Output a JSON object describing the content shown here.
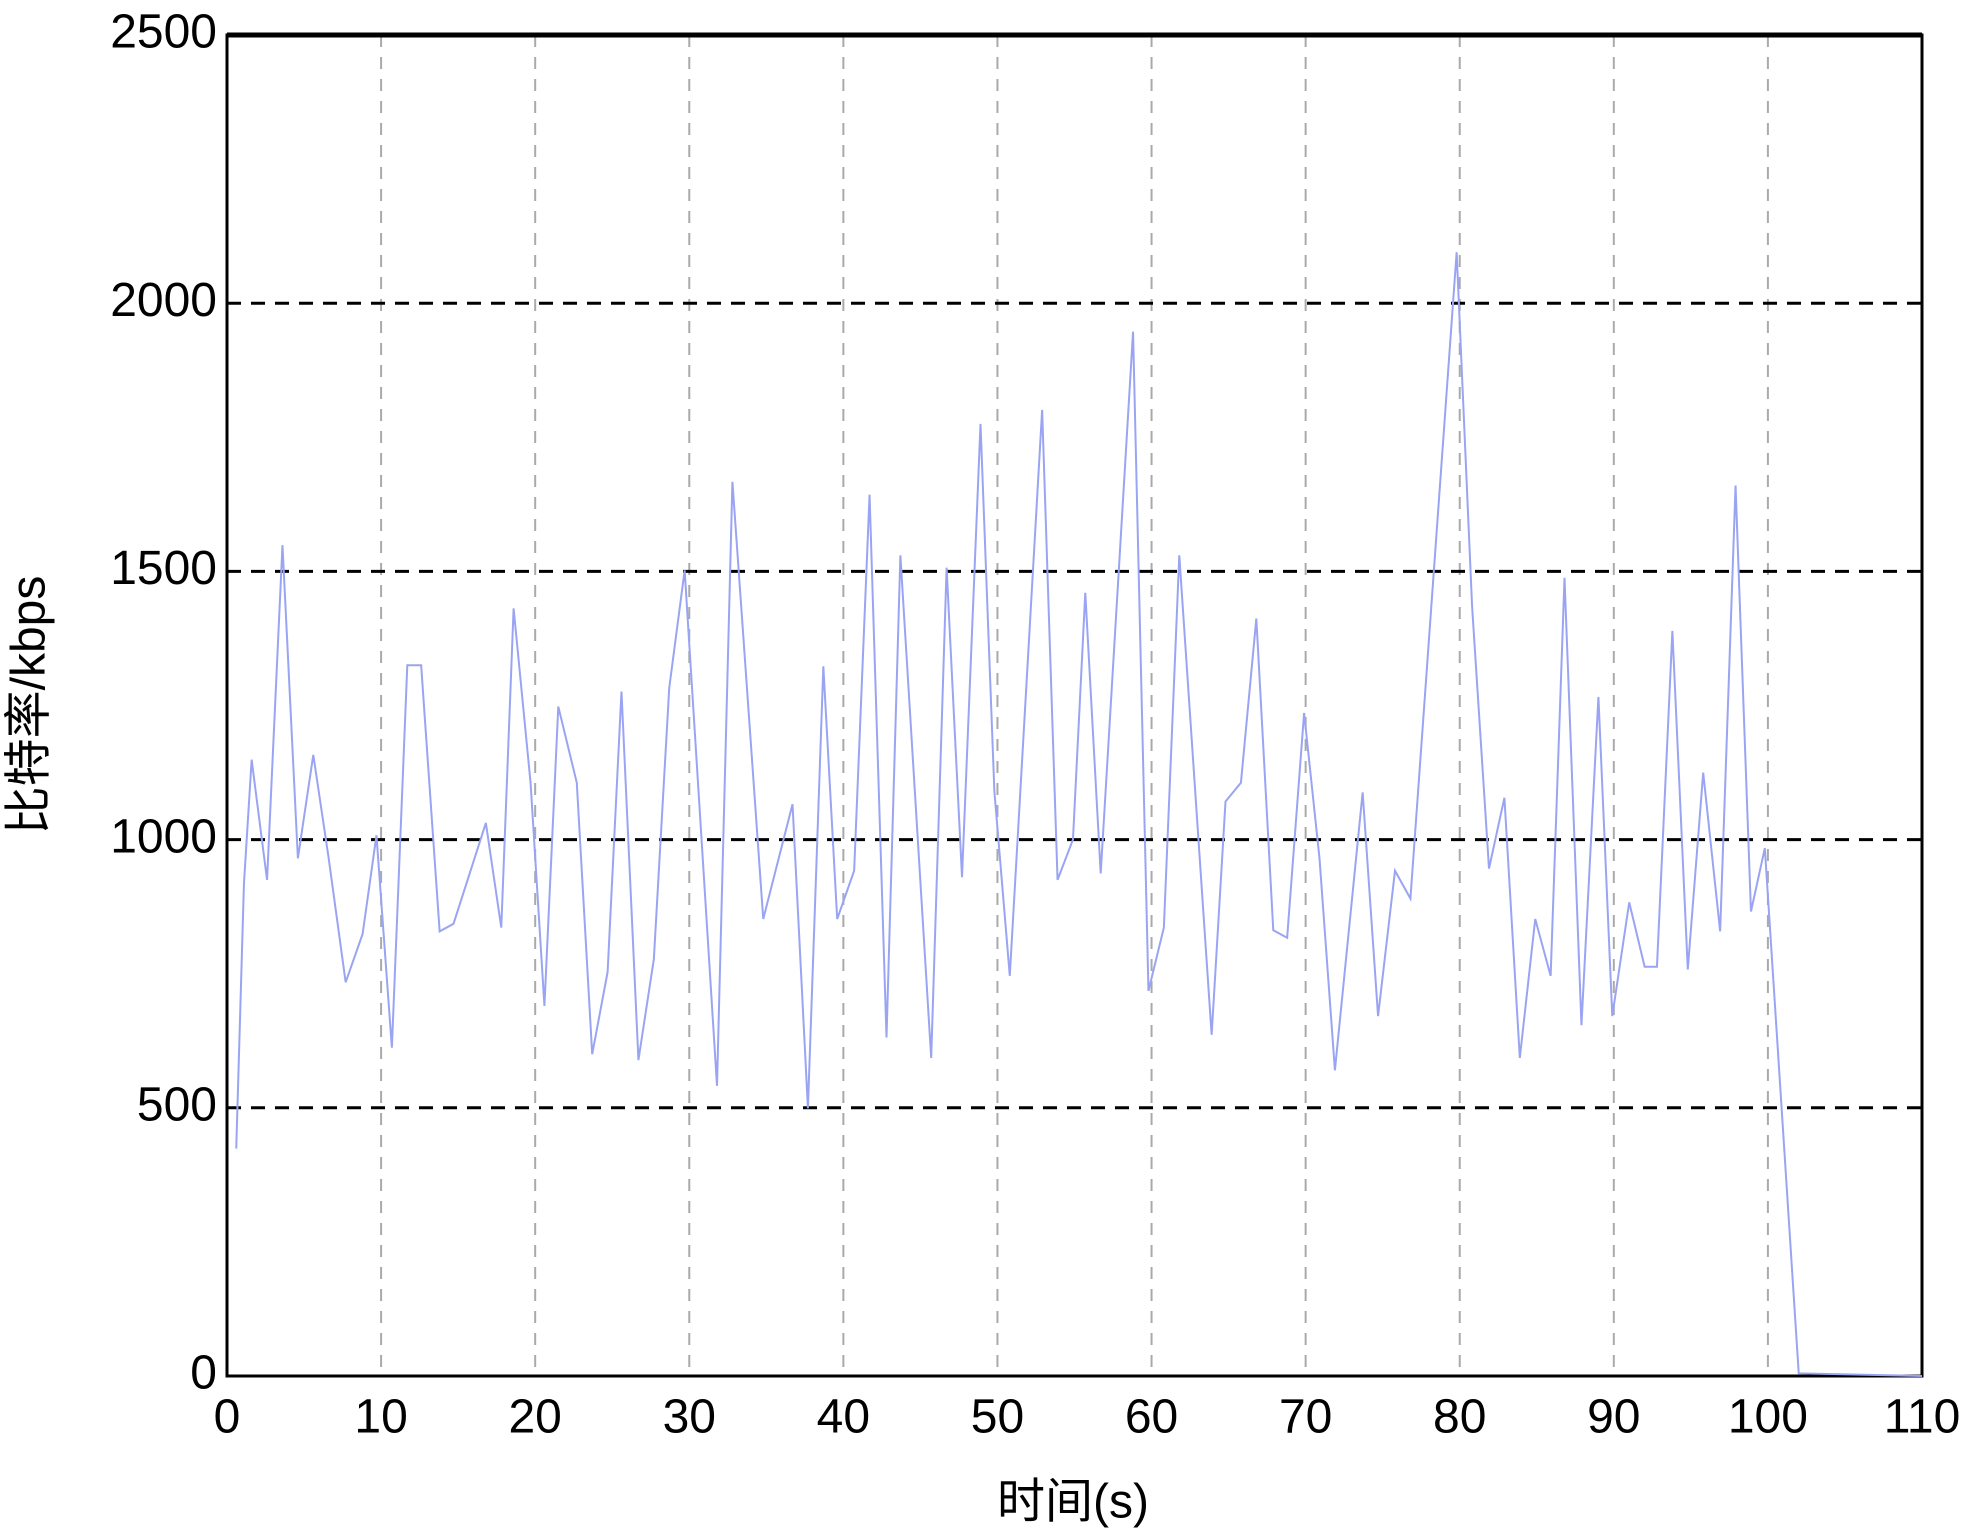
{
  "chart_data": {
    "type": "line",
    "x_label": "时间(s)",
    "y_label": "比特率/kbps",
    "x": [
      0.6,
      1.1,
      1.6,
      2.0,
      2.6,
      3.6,
      4.6,
      5.6,
      6.6,
      7.7,
      8.8,
      9.7,
      10.7,
      11.7,
      12.6,
      13.8,
      14.7,
      16.8,
      17.8,
      18.6,
      19.7,
      20.6,
      21.5,
      22.7,
      23.7,
      24.7,
      25.6,
      26.7,
      27.7,
      28.7,
      29.7,
      31.8,
      32.8,
      34.8,
      36.7,
      37.7,
      38.7,
      39.6,
      40.7,
      41.7,
      42.8,
      43.7,
      45.7,
      46.7,
      47.7,
      48.9,
      49.8,
      50.8,
      52.9,
      53.9,
      54.9,
      55.7,
      56.7,
      58.8,
      59.8,
      60.8,
      61.8,
      63.9,
      64.8,
      65.8,
      66.8,
      67.9,
      68.8,
      69.9,
      70.9,
      71.9,
      73.7,
      74.7,
      75.8,
      76.8,
      79.8,
      80.8,
      81.9,
      82.9,
      83.9,
      84.9,
      85.9,
      86.8,
      87.9,
      89.0,
      89.9,
      91.0,
      92.0,
      92.8,
      93.8,
      94.8,
      95.8,
      96.9,
      97.9,
      98.9,
      99.8,
      102.0,
      110
    ],
    "series": [
      {
        "color": "#9aa4f2",
        "values": [
          424,
          918,
          1149,
          1059,
          925,
          1549,
          965,
          1158,
          965,
          734,
          824,
          1008,
          612,
          1325,
          1325,
          829,
          843,
          1031,
          836,
          1431,
          1106,
          690,
          1248,
          1106,
          600,
          753,
          1276,
          589,
          777,
          1283,
          1502,
          541,
          1667,
          852,
          1066,
          499,
          1323,
          852,
          942,
          1643,
          631,
          1530,
          593,
          1507,
          930,
          1775,
          1090,
          746,
          1801,
          925,
          1000,
          1460,
          937,
          1947,
          718,
          836,
          1530,
          636,
          1071,
          1106,
          1412,
          831,
          817,
          1236,
          965,
          570,
          1088,
          671,
          942,
          890,
          2095,
          1436,
          946,
          1078,
          593,
          852,
          746,
          1488,
          654,
          1266,
          671,
          883,
          763,
          763,
          1389,
          758,
          1125,
          829,
          1660,
          866,
          984,
          5,
          0
        ]
      }
    ],
    "xlim": [
      0,
      110
    ],
    "xticks": [
      0,
      10,
      20,
      30,
      40,
      50,
      60,
      70,
      80,
      90,
      100,
      110
    ],
    "ylim": [
      0,
      2500
    ],
    "yticks": [
      0,
      500,
      1000,
      1500,
      2000,
      2500
    ],
    "grid": true
  }
}
